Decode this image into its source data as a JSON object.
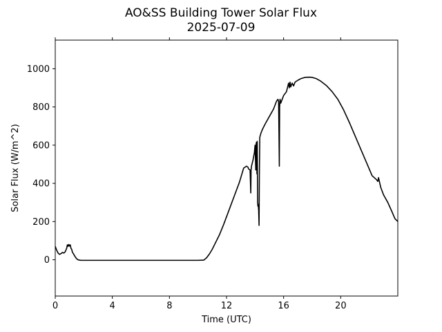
{
  "chart_data": {
    "type": "line",
    "title": "AO&SS Building Tower Solar Flux",
    "subtitle": "2025-07-09",
    "xlabel": "Time (UTC)",
    "ylabel": "Solar Flux (W/m^2)",
    "xlim": [
      0,
      24
    ],
    "ylim": [
      -190,
      1150
    ],
    "x_ticks": [
      0,
      4,
      8,
      12,
      16,
      20
    ],
    "x_tick_labels": [
      "0",
      "4",
      "8",
      "12",
      "16",
      "20"
    ],
    "y_ticks": [
      0,
      200,
      400,
      600,
      800,
      1000
    ],
    "y_tick_labels": [
      "0",
      "200",
      "400",
      "600",
      "800",
      "1000"
    ],
    "grid": false,
    "line_color": "#000000",
    "series": [
      {
        "x": [
          0,
          0.1,
          0.2,
          0.3,
          0.4,
          0.5,
          0.6,
          0.7,
          0.8,
          0.85,
          0.9,
          0.95,
          1.0,
          1.05,
          1.1,
          1.15,
          1.2,
          1.3,
          1.4,
          1.5,
          1.6,
          1.7,
          1.8,
          1.9,
          2.0,
          2.2,
          3,
          4,
          6,
          8,
          10,
          10.4,
          10.6,
          10.8,
          11.0,
          11.2,
          11.5,
          11.8,
          12.0,
          12.3,
          12.6,
          12.9,
          13.2,
          13.4,
          13.5,
          13.55,
          13.65,
          13.7,
          13.72,
          13.75,
          13.85,
          13.95,
          14.0,
          14.05,
          14.08,
          14.1,
          14.13,
          14.15,
          14.18,
          14.2,
          14.22,
          14.25,
          14.28,
          14.3,
          14.33,
          14.36,
          14.38,
          14.4,
          14.42,
          14.45,
          14.5,
          14.7,
          15.0,
          15.3,
          15.5,
          15.6,
          15.65,
          15.7,
          15.72,
          15.75,
          15.78,
          15.8,
          15.85,
          16.0,
          16.2,
          16.3,
          16.35,
          16.4,
          16.45,
          16.5,
          16.6,
          16.7,
          16.8,
          16.9,
          17.0,
          17.2,
          17.5,
          17.8,
          18.0,
          18.3,
          18.6,
          19.0,
          19.4,
          19.8,
          20.2,
          20.6,
          21.0,
          21.4,
          21.8,
          22.2,
          22.5,
          22.6,
          22.65,
          22.8,
          23.0,
          23.3,
          23.6,
          23.8,
          24.0
        ],
        "y": [
          70,
          50,
          35,
          28,
          32,
          38,
          35,
          42,
          60,
          78,
          70,
          80,
          72,
          78,
          60,
          55,
          40,
          28,
          15,
          5,
          0,
          -2,
          -3,
          -3,
          -3,
          -3,
          -3,
          -3,
          -3,
          -3,
          -3,
          -2,
          10,
          30,
          55,
          85,
          130,
          185,
          225,
          285,
          345,
          405,
          480,
          490,
          485,
          475,
          470,
          350,
          470,
          490,
          520,
          560,
          600,
          470,
          610,
          615,
          450,
          620,
          300,
          280,
          290,
          260,
          180,
          430,
          640,
          650,
          655,
          660,
          665,
          670,
          680,
          710,
          750,
          790,
          830,
          840,
          830,
          490,
          800,
          840,
          830,
          820,
          830,
          860,
          880,
          910,
          925,
          900,
          930,
          905,
          925,
          910,
          930,
          935,
          940,
          948,
          955,
          956,
          955,
          948,
          935,
          912,
          880,
          840,
          785,
          720,
          650,
          580,
          510,
          440,
          420,
          410,
          430,
          380,
          340,
          300,
          250,
          215,
          200
        ]
      }
    ]
  }
}
